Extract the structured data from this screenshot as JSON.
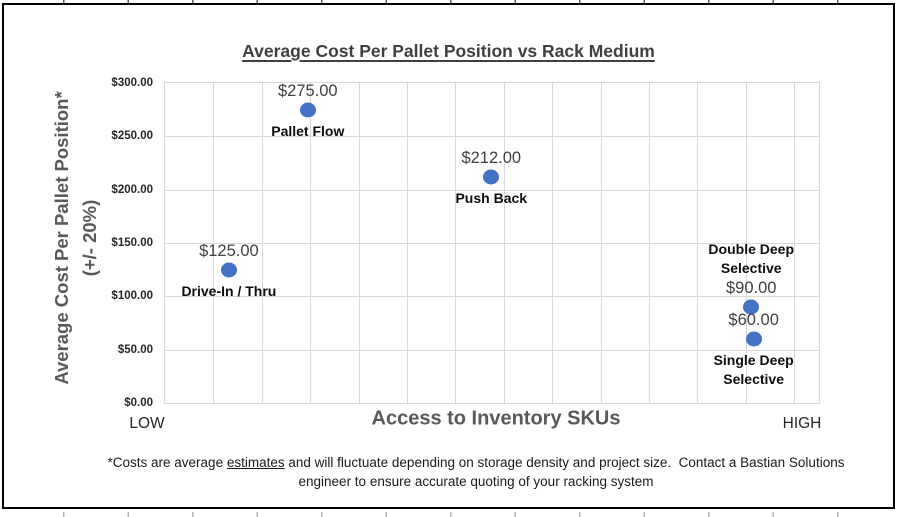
{
  "chart_data": {
    "type": "scatter",
    "title": "Average Cost Per Pallet Position vs Rack Medium",
    "marker_color": "#4472C4",
    "gridline_color": "#D9D9D9",
    "y_axis": {
      "title_line1": "Average Cost Per Pallet Position*",
      "title_line2": "(+/- 20%)",
      "min": 0,
      "max": 300,
      "tick_step": 50,
      "tick_labels_top_to_bottom": [
        "$300.00",
        "$250.00",
        "$200.00",
        "$150.00",
        "$100.00",
        "$50.00",
        "$0.00"
      ]
    },
    "x_axis": {
      "title": "Access to Inventory SKUs",
      "left_label": "LOW",
      "right_label": "HIGH",
      "max_units": 13.51,
      "gridline_unit": 1
    },
    "points": [
      {
        "name": "Drive-In / Thru",
        "x": 1.32,
        "value": 125,
        "value_label": "$125.00",
        "name_position": "below"
      },
      {
        "name": "Pallet Flow",
        "x": 2.95,
        "value": 275,
        "value_label": "$275.00",
        "name_position": "below"
      },
      {
        "name": "Push Back",
        "x": 6.74,
        "value": 212,
        "value_label": "$212.00",
        "name_position": "below"
      },
      {
        "name": "Double Deep\nSelective",
        "x": 12.11,
        "value": 90,
        "value_label": "$90.00",
        "name_position": "above"
      },
      {
        "name": "Single Deep\nSelective",
        "x": 12.16,
        "value": 60,
        "value_label": "$60.00",
        "name_position": "below"
      }
    ],
    "legend": "none",
    "grid": "on"
  },
  "footnote": {
    "prefix": "*Costs are average ",
    "underlined": "estimates",
    "suffix": " and will fluctuate depending on storage density and project size.  Contact a Bastian Solutions",
    "line2": "engineer to ensure accurate quoting of your racking system"
  }
}
